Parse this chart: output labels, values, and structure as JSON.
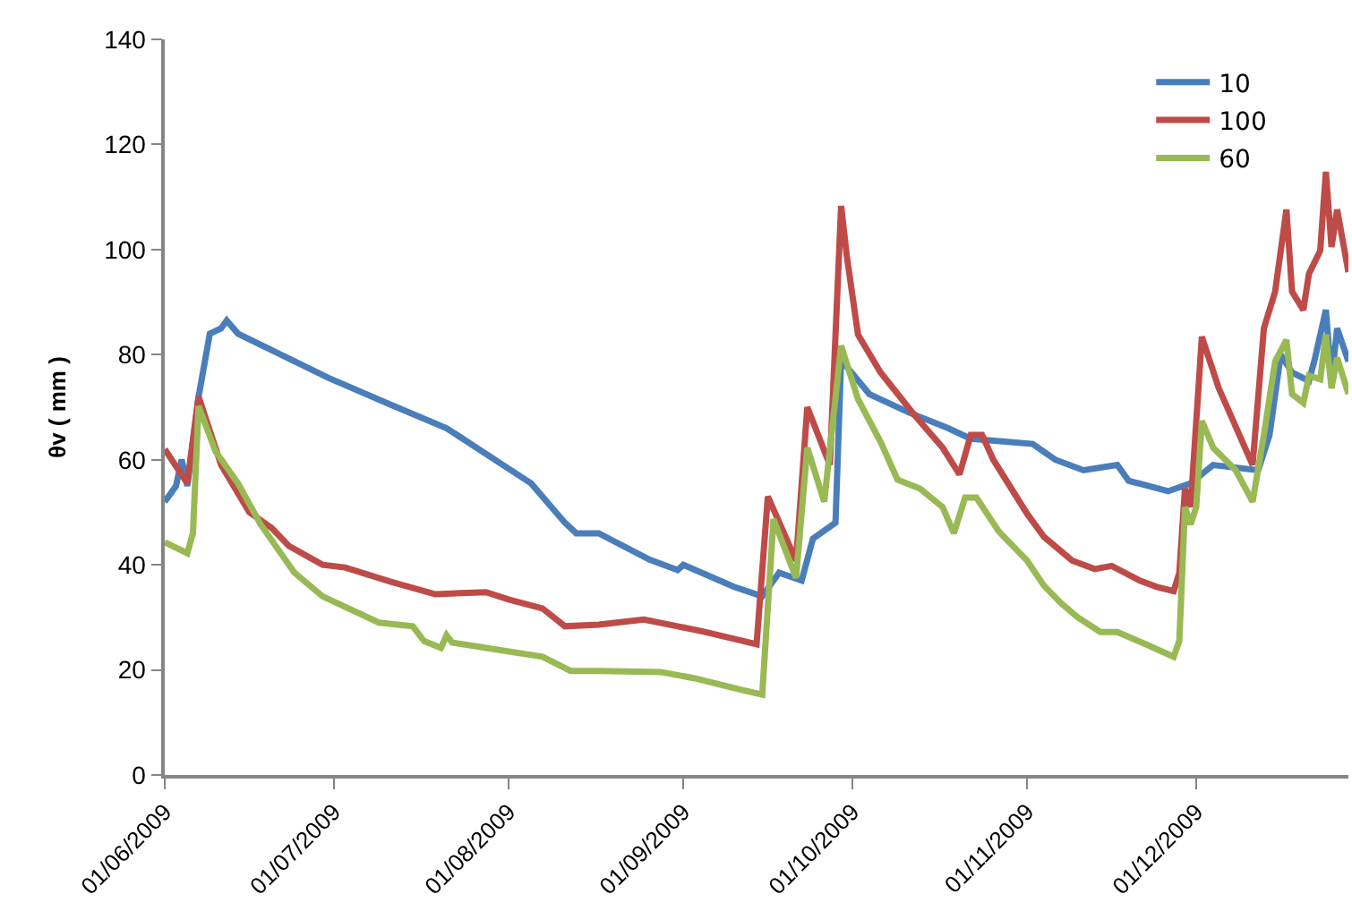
{
  "chart_data": {
    "type": "line",
    "ylabel": "θv ( mm )",
    "legend": "top right",
    "grid": false,
    "marker": "none",
    "line_style": "solid",
    "xlim": [
      "2009-06-01",
      "2009-12-28"
    ],
    "xticks": [
      {
        "value": "2009-06-01",
        "label": "01/06/2009"
      },
      {
        "value": "2009-07-01",
        "label": "01/07/2009"
      },
      {
        "value": "2009-08-01",
        "label": "01/08/2009"
      },
      {
        "value": "2009-09-01",
        "label": "01/09/2009"
      },
      {
        "value": "2009-10-01",
        "label": "01/10/2009"
      },
      {
        "value": "2009-11-01",
        "label": "01/11/2009"
      },
      {
        "value": "2009-12-01",
        "label": "01/12/2009"
      }
    ],
    "ylim": [
      0,
      140
    ],
    "yticks": [
      0,
      20,
      40,
      60,
      80,
      100,
      120,
      140
    ],
    "series": [
      {
        "name": "10",
        "color": "#4a7ebb",
        "x": [
          "2009-06-01",
          "2009-06-03",
          "2009-06-04",
          "2009-06-05",
          "2009-06-07",
          "2009-06-09",
          "2009-06-11",
          "2009-06-12",
          "2009-06-14",
          "2009-06-30",
          "2009-07-11",
          "2009-07-21",
          "2009-07-31",
          "2009-08-05",
          "2009-08-11",
          "2009-08-13",
          "2009-08-17",
          "2009-08-26",
          "2009-08-31",
          "2009-09-01",
          "2009-09-10",
          "2009-09-15",
          "2009-09-18",
          "2009-09-22",
          "2009-09-24",
          "2009-09-28",
          "2009-09-29",
          "2009-10-04",
          "2009-10-11",
          "2009-10-18",
          "2009-10-22",
          "2009-11-02",
          "2009-11-06",
          "2009-11-11",
          "2009-11-17",
          "2009-11-19",
          "2009-11-26",
          "2009-11-30",
          "2009-12-04",
          "2009-12-12",
          "2009-12-14",
          "2009-12-16",
          "2009-12-18",
          "2009-12-21",
          "2009-12-22",
          "2009-12-24",
          "2009-12-25",
          "2009-12-26",
          "2009-12-28"
        ],
        "values": [
          52,
          55,
          60,
          55,
          72,
          84,
          85,
          86.5,
          84,
          75.6,
          70.5,
          66,
          59,
          55.5,
          48,
          46,
          46,
          41,
          39,
          40,
          35.8,
          34,
          38.5,
          37,
          45,
          48,
          79,
          72.5,
          69,
          66,
          64,
          63,
          60,
          58,
          59,
          56,
          54,
          55.5,
          59,
          58,
          64.7,
          80,
          76.6,
          75,
          79,
          88.5,
          75,
          85,
          78.7
        ]
      },
      {
        "name": "100",
        "color": "#be4b48",
        "x": [
          "2009-06-01",
          "2009-06-05",
          "2009-06-07",
          "2009-06-11",
          "2009-06-16",
          "2009-06-20",
          "2009-06-23",
          "2009-06-29",
          "2009-07-03",
          "2009-07-11",
          "2009-07-19",
          "2009-07-28",
          "2009-08-01",
          "2009-08-07",
          "2009-08-11",
          "2009-08-17",
          "2009-08-25",
          "2009-08-31",
          "2009-09-05",
          "2009-09-14",
          "2009-09-16",
          "2009-09-21",
          "2009-09-23",
          "2009-09-27",
          "2009-09-29",
          "2009-09-30",
          "2009-10-02",
          "2009-10-06",
          "2009-10-12",
          "2009-10-17",
          "2009-10-20",
          "2009-10-22",
          "2009-10-24",
          "2009-10-26",
          "2009-11-01",
          "2009-11-04",
          "2009-11-09",
          "2009-11-13",
          "2009-11-16",
          "2009-11-21",
          "2009-11-24",
          "2009-11-27",
          "2009-11-28",
          "2009-11-29",
          "2009-11-30",
          "2009-12-02",
          "2009-12-05",
          "2009-12-11",
          "2009-12-13",
          "2009-12-15",
          "2009-12-17",
          "2009-12-18",
          "2009-12-20",
          "2009-12-21",
          "2009-12-23",
          "2009-12-24",
          "2009-12-25",
          "2009-12-26",
          "2009-12-28"
        ],
        "values": [
          62,
          55.5,
          72,
          59,
          50,
          47,
          43.6,
          40,
          39.5,
          36.8,
          34.4,
          34.8,
          33.4,
          31.7,
          28.3,
          28.6,
          29.6,
          28.3,
          27.2,
          24.9,
          53,
          40.8,
          70,
          59,
          108.3,
          98.8,
          83.8,
          76.6,
          68.5,
          62.3,
          57.2,
          64.7,
          64.7,
          60,
          49.7,
          45.3,
          40.8,
          39.2,
          39.8,
          37,
          35.8,
          35,
          38.5,
          54.5,
          51,
          83.4,
          73.6,
          59,
          85,
          92,
          107.6,
          92,
          88.5,
          95.4,
          99.8,
          114.8,
          100.5,
          107.6,
          95.7
        ]
      },
      {
        "name": "60",
        "color": "#98b954",
        "x": [
          "2009-06-01",
          "2009-06-05",
          "2009-06-06",
          "2009-06-07",
          "2009-06-10",
          "2009-06-14",
          "2009-06-18",
          "2009-06-24",
          "2009-06-29",
          "2009-07-09",
          "2009-07-15",
          "2009-07-17",
          "2009-07-20",
          "2009-07-21",
          "2009-07-22",
          "2009-07-28",
          "2009-08-07",
          "2009-08-12",
          "2009-08-17",
          "2009-08-28",
          "2009-09-03",
          "2009-09-11",
          "2009-09-15",
          "2009-09-17",
          "2009-09-21",
          "2009-09-23",
          "2009-09-26",
          "2009-09-29",
          "2009-10-02",
          "2009-10-06",
          "2009-10-09",
          "2009-10-13",
          "2009-10-17",
          "2009-10-19",
          "2009-10-21",
          "2009-10-23",
          "2009-10-27",
          "2009-11-01",
          "2009-11-04",
          "2009-11-07",
          "2009-11-10",
          "2009-11-14",
          "2009-11-17",
          "2009-11-22",
          "2009-11-27",
          "2009-11-28",
          "2009-11-29",
          "2009-11-30",
          "2009-12-01",
          "2009-12-02",
          "2009-12-04",
          "2009-12-08",
          "2009-12-11",
          "2009-12-13",
          "2009-12-15",
          "2009-12-17",
          "2009-12-18",
          "2009-12-20",
          "2009-12-21",
          "2009-12-23",
          "2009-12-24",
          "2009-12-25",
          "2009-12-26",
          "2009-12-28"
        ],
        "values": [
          44.3,
          42.2,
          46,
          70.2,
          61.6,
          55.5,
          47.7,
          38.5,
          34,
          29,
          28.3,
          25.5,
          24.2,
          26.6,
          25.2,
          24.2,
          22.5,
          19.8,
          19.8,
          19.6,
          18.4,
          16.3,
          15.3,
          48.7,
          37.5,
          62.3,
          52,
          81.7,
          71.5,
          63.4,
          56.2,
          54.5,
          51,
          46,
          52.8,
          52.8,
          46.3,
          40.8,
          36,
          32.7,
          30,
          27.2,
          27.2,
          24.9,
          22.5,
          25.5,
          51,
          47.7,
          51,
          67.4,
          62.3,
          58,
          52,
          64.7,
          78.7,
          82.8,
          72.5,
          70.8,
          76,
          75.3,
          83.8,
          73.6,
          79.4,
          72.5
        ]
      }
    ]
  }
}
